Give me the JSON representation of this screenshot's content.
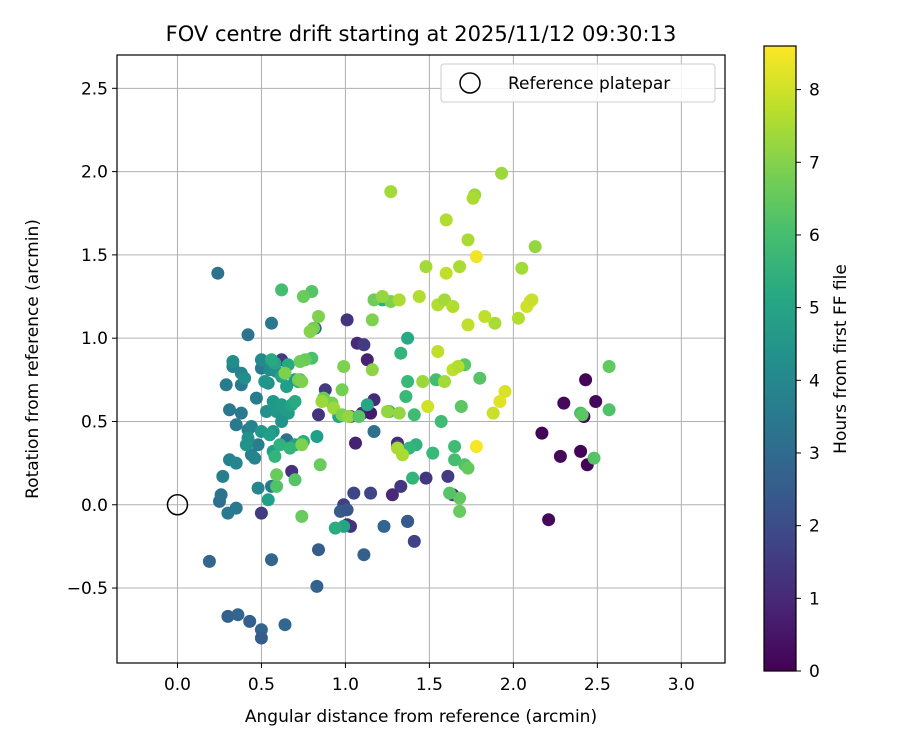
{
  "chart_data": {
    "type": "scatter",
    "title": "FOV centre drift starting at 2025/11/12 09:30:13",
    "xlabel": "Angular distance from reference (arcmin)",
    "ylabel": "Rotation from reference (arcmin)",
    "xlim": [
      -0.36,
      3.26
    ],
    "ylim": [
      -0.95,
      2.7
    ],
    "x_ticks": [
      0.0,
      0.5,
      1.0,
      1.5,
      2.0,
      2.5,
      3.0
    ],
    "x_tick_labels": [
      "0.0",
      "0.5",
      "1.0",
      "1.5",
      "2.0",
      "2.5",
      "3.0"
    ],
    "y_ticks": [
      -0.5,
      0.0,
      0.5,
      1.0,
      1.5,
      2.0,
      2.5
    ],
    "y_tick_labels": [
      "−0.5",
      "0.0",
      "0.5",
      "1.0",
      "1.5",
      "2.0",
      "2.5"
    ],
    "grid": true,
    "legend": {
      "placement": "top-right",
      "entries": [
        {
          "label": "Reference platepar",
          "marker": "open-circle"
        }
      ]
    },
    "reference_point": {
      "x": 0.0,
      "y": 0.0
    },
    "colorbar": {
      "label": "Hours from first FF file",
      "colormap": "viridis",
      "range": [
        0,
        8.6
      ],
      "ticks": [
        0,
        1,
        2,
        3,
        4,
        5,
        6,
        7,
        8
      ],
      "tick_labels": [
        "0",
        "1",
        "2",
        "3",
        "4",
        "5",
        "6",
        "7",
        "8"
      ]
    },
    "points": [
      [
        2.43,
        0.75,
        0.1
      ],
      [
        2.4,
        0.32,
        0.1
      ],
      [
        2.42,
        0.53,
        0.1
      ],
      [
        2.44,
        0.24,
        0.1
      ],
      [
        2.49,
        0.62,
        0.2
      ],
      [
        2.3,
        0.61,
        0.2
      ],
      [
        2.28,
        0.29,
        0.2
      ],
      [
        2.17,
        0.43,
        0.1
      ],
      [
        2.21,
        -0.09,
        0.2
      ],
      [
        1.01,
        1.11,
        1.3
      ],
      [
        1.07,
        0.97,
        1.0
      ],
      [
        1.11,
        0.96,
        1.5
      ],
      [
        1.13,
        0.87,
        0.8
      ],
      [
        1.17,
        0.63,
        1.0
      ],
      [
        1.1,
        0.55,
        1.2
      ],
      [
        1.15,
        0.55,
        0.6
      ],
      [
        1.03,
        0.53,
        1.0
      ],
      [
        1.06,
        0.37,
        0.8
      ],
      [
        1.31,
        0.37,
        1.0
      ],
      [
        1.28,
        0.06,
        1.0
      ],
      [
        1.33,
        0.11,
        1.4
      ],
      [
        1.37,
        -0.1,
        2.0
      ],
      [
        1.41,
        -0.22,
        1.7
      ],
      [
        1.64,
        0.06,
        1.3
      ],
      [
        1.48,
        0.16,
        1.4
      ],
      [
        1.61,
        0.17,
        1.5
      ],
      [
        1.31,
        0.35,
        1.7
      ],
      [
        1.15,
        0.07,
        1.8
      ],
      [
        1.05,
        0.07,
        1.8
      ],
      [
        1.01,
        -0.12,
        1.3
      ],
      [
        1.03,
        -0.13,
        1.2
      ],
      [
        0.99,
        0.0,
        1.6
      ],
      [
        0.88,
        0.69,
        1.5
      ],
      [
        0.84,
        0.54,
        1.3
      ],
      [
        0.68,
        0.2,
        1.2
      ],
      [
        0.62,
        0.87,
        1.5
      ],
      [
        0.5,
        -0.05,
        1.5
      ],
      [
        0.97,
        -0.04,
        2.5
      ],
      [
        1.01,
        -0.03,
        2.3
      ],
      [
        1.11,
        -0.3,
        2.6
      ],
      [
        1.23,
        -0.13,
        2.8
      ],
      [
        1.37,
        -0.1,
        2.4
      ],
      [
        0.84,
        -0.27,
        2.5
      ],
      [
        0.83,
        -0.49,
        2.7
      ],
      [
        0.56,
        -0.33,
        2.8
      ],
      [
        0.19,
        -0.34,
        2.8
      ],
      [
        0.3,
        -0.67,
        2.7
      ],
      [
        0.36,
        -0.66,
        2.8
      ],
      [
        0.43,
        -0.7,
        2.6
      ],
      [
        0.5,
        -0.75,
        2.8
      ],
      [
        0.5,
        -0.8,
        2.5
      ],
      [
        0.64,
        -0.72,
        2.9
      ],
      [
        0.24,
        1.39,
        3.3
      ],
      [
        0.56,
        1.09,
        3.4
      ],
      [
        0.42,
        1.02,
        3.3
      ],
      [
        0.82,
        1.06,
        2.9
      ],
      [
        1.17,
        0.44,
        3.2
      ],
      [
        0.65,
        0.39,
        3.2
      ],
      [
        0.56,
        0.11,
        3.4
      ],
      [
        0.25,
        0.02,
        3.1
      ],
      [
        0.26,
        0.06,
        3.3
      ],
      [
        0.3,
        -0.05,
        3.5
      ],
      [
        0.35,
        -0.02,
        3.5
      ],
      [
        0.29,
        0.72,
        3.6
      ],
      [
        0.38,
        0.72,
        3.5
      ],
      [
        0.47,
        0.64,
        3.6
      ],
      [
        0.5,
        0.82,
        3.5
      ],
      [
        0.31,
        0.57,
        3.4
      ],
      [
        0.38,
        0.55,
        3.5
      ],
      [
        0.35,
        0.48,
        3.5
      ],
      [
        0.42,
        0.45,
        3.7
      ],
      [
        0.44,
        0.47,
        3.9
      ],
      [
        0.48,
        0.36,
        3.7
      ],
      [
        0.44,
        0.3,
        3.8
      ],
      [
        0.27,
        0.17,
        3.7
      ],
      [
        0.31,
        0.27,
        3.8
      ],
      [
        0.46,
        0.28,
        3.9
      ],
      [
        0.35,
        0.25,
        4.0
      ],
      [
        0.48,
        0.1,
        4.0
      ],
      [
        0.33,
        0.83,
        3.8
      ],
      [
        0.33,
        0.86,
        4.2
      ],
      [
        0.38,
        0.79,
        3.9
      ],
      [
        0.4,
        0.76,
        4.2
      ],
      [
        0.5,
        0.87,
        4.1
      ],
      [
        0.55,
        0.81,
        4.2
      ],
      [
        0.59,
        0.8,
        4.3
      ],
      [
        0.54,
        0.73,
        4.3
      ],
      [
        0.52,
        0.74,
        4.5
      ],
      [
        0.53,
        0.56,
        4.3
      ],
      [
        0.57,
        0.62,
        4.6
      ],
      [
        0.59,
        0.56,
        4.6
      ],
      [
        0.62,
        0.6,
        4.7
      ],
      [
        0.66,
        0.55,
        4.7
      ],
      [
        0.62,
        0.5,
        4.4
      ],
      [
        0.57,
        0.44,
        4.5
      ],
      [
        0.5,
        0.44,
        4.6
      ],
      [
        0.42,
        0.4,
        4.3
      ],
      [
        0.55,
        0.42,
        4.8
      ],
      [
        0.57,
        0.32,
        4.8
      ],
      [
        0.41,
        0.36,
        4.4
      ],
      [
        0.54,
        0.03,
        4.8
      ],
      [
        0.65,
        0.71,
        4.8
      ],
      [
        0.7,
        0.75,
        4.6
      ],
      [
        0.72,
        0.74,
        5.0
      ],
      [
        0.62,
        0.77,
        5.0
      ],
      [
        0.58,
        0.85,
        5.0
      ],
      [
        0.56,
        0.87,
        5.2
      ],
      [
        0.66,
        0.84,
        5.2
      ],
      [
        0.68,
        0.6,
        5.0
      ],
      [
        0.7,
        0.62,
        5.2
      ],
      [
        0.73,
        0.75,
        5.3
      ],
      [
        0.83,
        0.41,
        4.8
      ],
      [
        0.7,
        0.36,
        4.9
      ],
      [
        0.75,
        0.38,
        5.3
      ],
      [
        0.61,
        0.36,
        5.5
      ],
      [
        0.67,
        0.34,
        5.6
      ],
      [
        0.58,
        0.29,
        5.6
      ],
      [
        0.96,
        0.53,
        5.0
      ],
      [
        0.99,
        -0.13,
        5.0
      ],
      [
        0.94,
        -0.14,
        5.3
      ],
      [
        1.13,
        0.6,
        5.1
      ],
      [
        1.26,
        0.56,
        5.4
      ],
      [
        1.22,
        1.23,
        5.4
      ],
      [
        1.37,
        1.0,
        5.2
      ],
      [
        1.33,
        0.91,
        5.6
      ],
      [
        1.42,
        0.36,
        5.5
      ],
      [
        1.38,
        0.34,
        5.7
      ],
      [
        1.4,
        0.16,
        5.6
      ],
      [
        1.36,
        0.65,
        5.8
      ],
      [
        1.37,
        0.74,
        5.8
      ],
      [
        1.41,
        0.54,
        5.9
      ],
      [
        1.52,
        0.31,
        5.8
      ],
      [
        1.57,
        0.5,
        5.9
      ],
      [
        1.54,
        0.75,
        6.0
      ],
      [
        1.65,
        0.35,
        5.9
      ],
      [
        1.65,
        0.27,
        6.0
      ],
      [
        1.71,
        0.24,
        6.2
      ],
      [
        1.73,
        0.22,
        6.5
      ],
      [
        1.71,
        0.84,
        6.4
      ],
      [
        1.69,
        0.59,
        6.4
      ],
      [
        1.8,
        0.76,
        6.3
      ],
      [
        1.68,
        0.04,
        6.5
      ],
      [
        1.68,
        -0.04,
        6.6
      ],
      [
        1.62,
        0.07,
        6.3
      ],
      [
        0.62,
        1.29,
        6.0
      ],
      [
        0.8,
        1.28,
        6.3
      ],
      [
        0.75,
        1.25,
        6.6
      ],
      [
        0.8,
        0.88,
        6.1
      ],
      [
        0.76,
        0.87,
        6.6
      ],
      [
        0.81,
        1.06,
        6.8
      ],
      [
        0.79,
        1.04,
        7.0
      ],
      [
        0.84,
        1.13,
        6.9
      ],
      [
        0.87,
        0.64,
        6.7
      ],
      [
        0.92,
        0.61,
        6.8
      ],
      [
        0.98,
        0.69,
        6.8
      ],
      [
        0.86,
        0.62,
        7.3
      ],
      [
        0.93,
        0.58,
        7.3
      ],
      [
        0.98,
        0.54,
        6.9
      ],
      [
        1.02,
        0.53,
        7.2
      ],
      [
        1.08,
        0.53,
        6.3
      ],
      [
        1.16,
        1.11,
        6.9
      ],
      [
        1.17,
        1.23,
        6.7
      ],
      [
        1.27,
        1.22,
        6.9
      ],
      [
        1.22,
        1.25,
        7.2
      ],
      [
        1.32,
        1.23,
        7.5
      ],
      [
        0.73,
        0.86,
        6.7
      ],
      [
        0.72,
        0.75,
        6.8
      ],
      [
        0.64,
        0.79,
        6.9
      ],
      [
        0.74,
        0.74,
        6.9
      ],
      [
        0.59,
        0.11,
        6.2
      ],
      [
        0.59,
        0.18,
        6.6
      ],
      [
        0.7,
        0.15,
        6.3
      ],
      [
        0.74,
        -0.07,
        6.6
      ],
      [
        0.74,
        0.36,
        6.9
      ],
      [
        0.85,
        0.24,
        6.6
      ],
      [
        0.99,
        0.83,
        6.9
      ],
      [
        1.16,
        0.81,
        7.1
      ],
      [
        1.32,
        0.55,
        7.2
      ],
      [
        1.25,
        0.56,
        7.2
      ],
      [
        1.31,
        0.34,
        7.5
      ],
      [
        1.34,
        0.3,
        7.5
      ],
      [
        1.46,
        0.74,
        7.3
      ],
      [
        1.59,
        0.74,
        7.4
      ],
      [
        1.55,
        0.92,
        7.8
      ],
      [
        1.64,
        0.81,
        7.8
      ],
      [
        1.67,
        0.83,
        7.6
      ],
      [
        1.49,
        0.59,
        8.0
      ],
      [
        1.44,
        1.25,
        7.6
      ],
      [
        1.48,
        1.43,
        7.4
      ],
      [
        1.55,
        1.2,
        7.6
      ],
      [
        1.59,
        1.23,
        7.4
      ],
      [
        1.64,
        1.19,
        7.6
      ],
      [
        1.6,
        1.39,
        7.8
      ],
      [
        1.68,
        1.43,
        7.5
      ],
      [
        1.73,
        1.59,
        7.5
      ],
      [
        1.77,
        1.86,
        7.3
      ],
      [
        1.76,
        1.84,
        7.5
      ],
      [
        1.6,
        1.71,
        7.6
      ],
      [
        1.27,
        1.88,
        7.4
      ],
      [
        1.93,
        1.99,
        7.3
      ],
      [
        2.13,
        1.55,
        7.2
      ],
      [
        2.05,
        1.42,
        7.4
      ],
      [
        2.03,
        1.12,
        7.6
      ],
      [
        1.89,
        1.09,
        7.5
      ],
      [
        1.83,
        1.13,
        7.8
      ],
      [
        1.73,
        1.08,
        7.8
      ],
      [
        1.78,
        1.49,
        8.4
      ],
      [
        2.08,
        1.19,
        8.0
      ],
      [
        2.1,
        1.22,
        8.0
      ],
      [
        2.11,
        1.23,
        7.9
      ],
      [
        1.95,
        0.68,
        8.1
      ],
      [
        1.92,
        0.62,
        8.2
      ],
      [
        1.88,
        0.55,
        7.9
      ],
      [
        1.78,
        0.35,
        8.5
      ],
      [
        2.57,
        0.83,
        6.5
      ],
      [
        2.57,
        0.57,
        6.2
      ],
      [
        2.48,
        0.28,
        6.3
      ],
      [
        2.4,
        0.55,
        6.0
      ],
      [
        2.41,
        0.54,
        6.4
      ]
    ]
  }
}
